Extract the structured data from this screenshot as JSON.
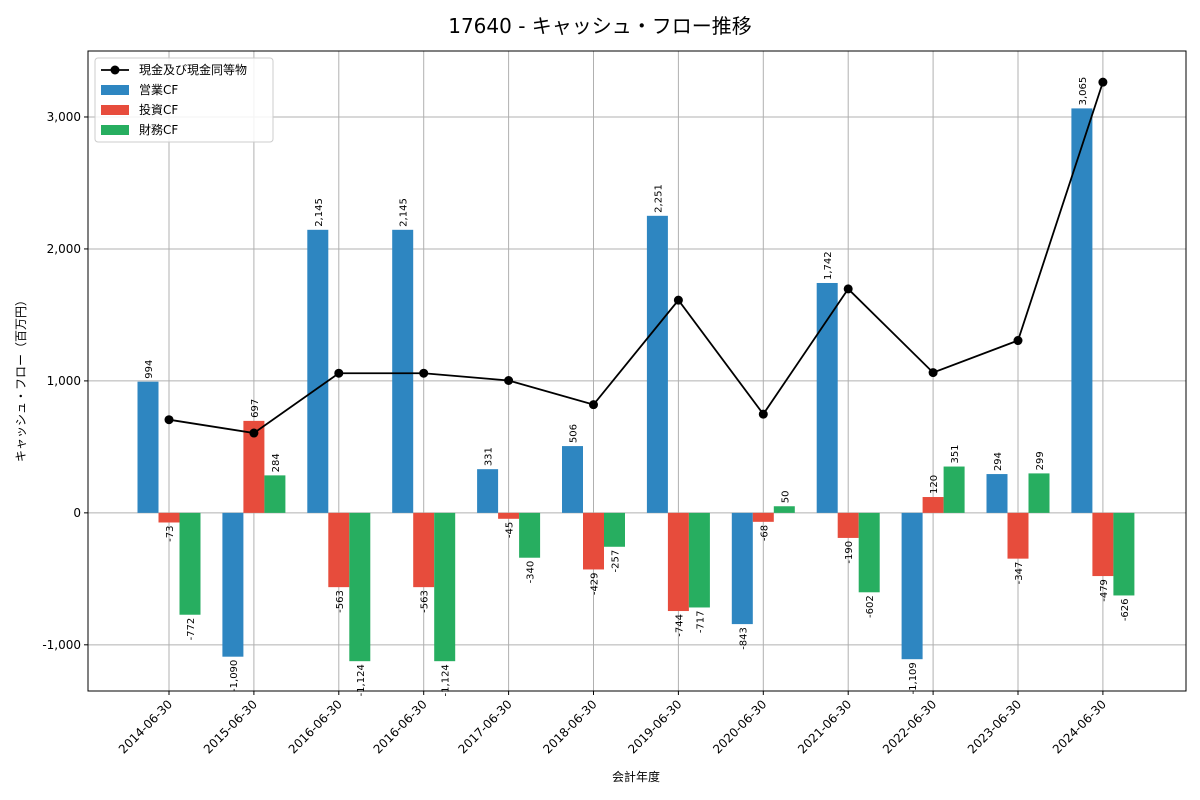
{
  "chart_data": {
    "type": "bar",
    "title": "17640 - キャッシュ・フロー推移",
    "xlabel": "会計年度",
    "ylabel": "キャッシュ・フロー（百万円）",
    "categories": [
      "2014-06-30",
      "2015-06-30",
      "2016-06-30",
      "2016-06-30",
      "2017-06-30",
      "2018-06-30",
      "2019-06-30",
      "2020-06-30",
      "2021-06-30",
      "2022-06-30",
      "2023-06-30",
      "2024-06-30"
    ],
    "series": [
      {
        "name": "営業CF",
        "kind": "bar",
        "color": "#2e86c1",
        "values": [
          994,
          -1090,
          2145,
          2145,
          331,
          506,
          2251,
          -843,
          1742,
          -1109,
          294,
          3065
        ],
        "labels": [
          "994",
          "-1,090",
          "2,145",
          "2,145",
          "331",
          "506",
          "2,251",
          "-843",
          "1,742",
          "-1,109",
          "294",
          "3,065"
        ]
      },
      {
        "name": "投資CF",
        "kind": "bar",
        "color": "#e74c3c",
        "values": [
          -73,
          697,
          -563,
          -563,
          -45,
          -429,
          -744,
          -68,
          -190,
          120,
          -347,
          -479
        ],
        "labels": [
          "-73",
          "697",
          "-563",
          "-563",
          "-45",
          "-429",
          "-744",
          "-68",
          "-190",
          "120",
          "-347",
          "-479"
        ]
      },
      {
        "name": "財務CF",
        "kind": "bar",
        "color": "#27ae60",
        "values": [
          -772,
          284,
          -1124,
          -1124,
          -340,
          -257,
          -717,
          50,
          -602,
          351,
          299,
          -626
        ],
        "labels": [
          "-772",
          "284",
          "-1,124",
          "-1,124",
          "-340",
          "-257",
          "-717",
          "50",
          "-602",
          "351",
          "299",
          "-626"
        ]
      },
      {
        "name": "現金及び現金同等物",
        "kind": "line",
        "color": "#000000",
        "values": [
          706,
          605,
          1058,
          1058,
          1003,
          820,
          1612,
          748,
          1697,
          1063,
          1306,
          3264
        ]
      }
    ],
    "ylim": [
      -1350,
      3500
    ],
    "yticks": [
      -1000,
      0,
      1000,
      2000,
      3000
    ],
    "ytick_labels": [
      "-1,000",
      "0",
      "1,000",
      "2,000",
      "3,000"
    ],
    "grid": true,
    "legend_position": "top-left"
  }
}
